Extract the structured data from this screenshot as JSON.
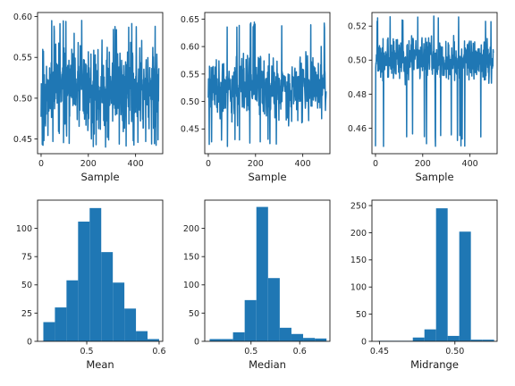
{
  "colors": {
    "series": "#1f77b4",
    "axis": "#1a1a1a",
    "background": "#ffffff"
  },
  "chart_data": [
    {
      "type": "line",
      "xlabel": "Sample",
      "ylabel": "",
      "xlim": [
        -15,
        515
      ],
      "ylim": [
        0.432,
        0.605
      ],
      "x_ticks": [
        0,
        200,
        400
      ],
      "y_ticks": [
        0.45,
        0.5,
        0.55,
        0.6
      ],
      "y_tick_labels": [
        "0.45",
        "0.50",
        "0.55",
        "0.60"
      ],
      "series": [
        {
          "n": 500,
          "center": 0.51,
          "spread": 0.026,
          "low": 0.44,
          "high": 0.597,
          "seed": 11
        }
      ]
    },
    {
      "type": "line",
      "xlabel": "Sample",
      "ylabel": "",
      "xlim": [
        -15,
        515
      ],
      "ylim": [
        0.405,
        0.662
      ],
      "x_ticks": [
        0,
        200,
        400
      ],
      "y_ticks": [
        0.45,
        0.5,
        0.55,
        0.6,
        0.65
      ],
      "y_tick_labels": [
        "0.45",
        "0.50",
        "0.55",
        "0.60",
        "0.65"
      ],
      "series": [
        {
          "n": 500,
          "center": 0.525,
          "spread": 0.028,
          "low": 0.415,
          "high": 0.653,
          "seed": 23
        }
      ]
    },
    {
      "type": "line",
      "xlabel": "Sample",
      "ylabel": "",
      "xlim": [
        -15,
        515
      ],
      "ylim": [
        0.445,
        0.528
      ],
      "x_ticks": [
        0,
        200,
        400
      ],
      "y_ticks": [
        0.46,
        0.48,
        0.5,
        0.52
      ],
      "y_tick_labels": [
        "0.46",
        "0.48",
        "0.50",
        "0.52"
      ],
      "series": [
        {
          "n": 500,
          "center": 0.5,
          "spread": 0.006,
          "low": 0.449,
          "high": 0.526,
          "seed": 37
        }
      ]
    },
    {
      "type": "bar",
      "subtype": "histogram",
      "xlabel": "Mean",
      "ylabel": "",
      "xlim": [
        0.432,
        0.605
      ],
      "ylim": [
        0,
        125
      ],
      "x_ticks": [
        0.5,
        0.6
      ],
      "x_tick_labels": [
        "0.5",
        "0.6"
      ],
      "y_ticks": [
        0,
        25,
        50,
        75,
        100
      ],
      "bin_edges": [
        0.44,
        0.456,
        0.472,
        0.488,
        0.504,
        0.52,
        0.536,
        0.552,
        0.568,
        0.584,
        0.6
      ],
      "values": [
        17,
        30,
        54,
        106,
        118,
        79,
        52,
        29,
        9,
        2
      ]
    },
    {
      "type": "bar",
      "subtype": "histogram",
      "xlabel": "Median",
      "ylabel": "",
      "xlim": [
        0.405,
        0.662
      ],
      "ylim": [
        0,
        250
      ],
      "x_ticks": [
        0.5,
        0.6
      ],
      "x_tick_labels": [
        "0.5",
        "0.6"
      ],
      "y_ticks": [
        0,
        50,
        100,
        150,
        200
      ],
      "bin_edges": [
        0.415,
        0.439,
        0.463,
        0.487,
        0.511,
        0.535,
        0.559,
        0.583,
        0.607,
        0.631,
        0.655
      ],
      "values": [
        4,
        4,
        16,
        73,
        238,
        112,
        24,
        13,
        6,
        5
      ]
    },
    {
      "type": "bar",
      "subtype": "histogram",
      "xlabel": "Midrange",
      "ylabel": "",
      "xlim": [
        0.445,
        0.528
      ],
      "ylim": [
        0,
        260
      ],
      "x_ticks": [
        0.45,
        0.5
      ],
      "x_tick_labels": [
        "0.45",
        "0.50"
      ],
      "y_ticks": [
        0,
        50,
        100,
        150,
        200,
        250
      ],
      "bin_edges": [
        0.449,
        0.4567,
        0.4644,
        0.4721,
        0.4798,
        0.4875,
        0.4952,
        0.5029,
        0.5106,
        0.5183,
        0.526
      ],
      "values": [
        1,
        1,
        1,
        7,
        22,
        245,
        10,
        202,
        3,
        3
      ]
    }
  ]
}
